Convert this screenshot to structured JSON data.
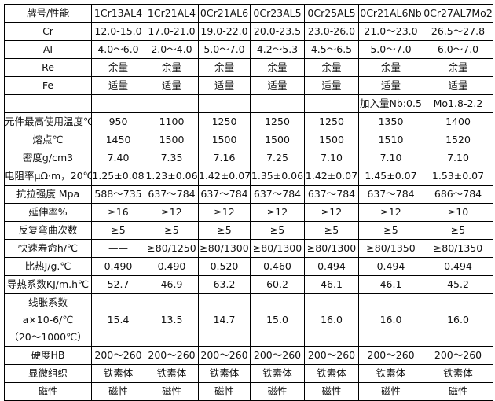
{
  "columns": [
    "牌号/性能",
    "1Cr13AL4",
    "1Cr21AL4",
    "0Cr21AL6",
    "0Cr23AL5",
    "0Cr25AL5",
    "0Cr21AL6Nb",
    "0Cr27AL7Mo2"
  ],
  "rows": [
    {
      "label": "Cr",
      "values": [
        "12.0-15.0",
        "17.0-21.0",
        "19.0-22.0",
        "20.0-23.5",
        "23.0-26.0",
        "21.0～23.0",
        "26.5～27.8"
      ]
    },
    {
      "label": "AI",
      "values": [
        "4.0～6.0",
        "2.0～4.0",
        "5.0～7.0",
        "4.2～5.3",
        "4.5～6.5",
        "5.0～7.0",
        "6.0～7.0"
      ]
    },
    {
      "label": "Re",
      "values": [
        "余量",
        "余量",
        "余量",
        "余量",
        "余量",
        "余量",
        "余量"
      ]
    },
    {
      "label": "Fe",
      "values": [
        "适量",
        "适量",
        "适量",
        "适量",
        "适量",
        "适量",
        "适量"
      ]
    },
    {
      "label": "",
      "values": [
        "",
        "",
        "",
        "",
        "",
        "加入量Nb:0.5",
        "Mo1.8-2.2"
      ]
    },
    {
      "label": "元件最高使用温度℃",
      "values": [
        "950",
        "1100",
        "1250",
        "1250",
        "1250",
        "1350",
        "1400"
      ]
    },
    {
      "label": "熔点℃",
      "values": [
        "1450",
        "1500",
        "1500",
        "1500",
        "1500",
        "1510",
        "1520"
      ]
    },
    {
      "label": "密度g/cm3",
      "values": [
        "7.40",
        "7.35",
        "7.16",
        "7.25",
        "7.10",
        "7.10",
        "7.10"
      ]
    },
    {
      "label": "电阻率μΩ·m，20℃",
      "values": [
        "1.25±0.08",
        "1.23±0.06",
        "1.42±0.07",
        "1.35±0.06",
        "1.42±0.07",
        "1.45±0.07",
        "1.53±0.07"
      ]
    },
    {
      "label": "抗拉强度 Mpa",
      "values": [
        "588～735",
        "637～784",
        "637～784",
        "637～784",
        "637～784",
        "637～784",
        "686～784"
      ]
    },
    {
      "label": "延伸率%",
      "values": [
        "≥16",
        "≥12",
        "≥12",
        "≥12",
        "≥12",
        "≥12",
        "≥10"
      ]
    },
    {
      "label": "反复弯曲次数",
      "values": [
        "≥5",
        "≥5",
        "≥5",
        "≥5",
        "≥5",
        "≥5",
        "≥5"
      ]
    },
    {
      "label": "快速寿命h/℃",
      "values": [
        "——",
        "≥80/1250",
        "≥80/1300",
        "≥80/1300",
        "≥80/1300",
        "≥80/1350",
        "≥80/1350"
      ]
    },
    {
      "label": "比热J/g.℃",
      "values": [
        "0.490",
        "0.490",
        "0.520",
        "0.460",
        "0.494",
        "0.494",
        "0.494"
      ]
    },
    {
      "label": "导热系数KJ/m.h℃",
      "values": [
        "52.7",
        "46.9",
        "63.2",
        "60.2",
        "46.1",
        "46.1",
        "45.2"
      ]
    },
    {
      "label_lines": [
        "线胀系数",
        "a×10-6/℃",
        "（20～1000℃）"
      ],
      "values": [
        "15.4",
        "13.5",
        "14.7",
        "15.0",
        "16.0",
        "16.0",
        "16.0"
      ]
    },
    {
      "label": "硬度HB",
      "values": [
        "200～260",
        "200～260",
        "200～260",
        "200～260",
        "200～260",
        "200～260",
        "200～260"
      ]
    },
    {
      "label": "显微组织",
      "values": [
        "铁素体",
        "铁素体",
        "铁素体",
        "铁素体",
        "铁素体",
        "铁素体",
        "铁素体"
      ]
    },
    {
      "label": "磁性",
      "values": [
        "磁性",
        "磁性",
        "磁性",
        "磁性",
        "磁性",
        "磁性",
        "磁性"
      ]
    }
  ]
}
